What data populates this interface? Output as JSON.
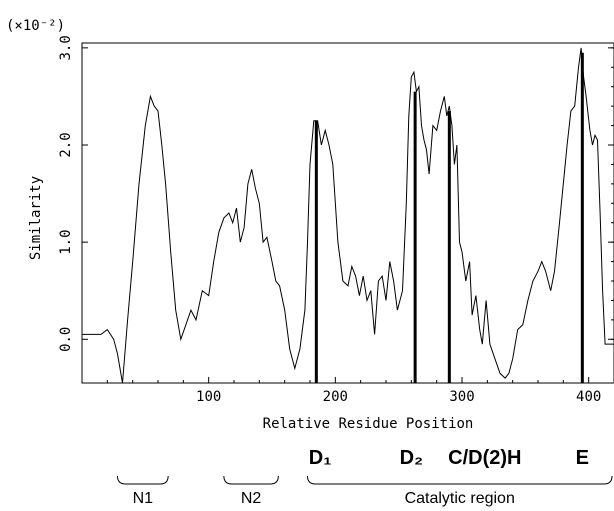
{
  "chart_data": {
    "type": "line",
    "scale_label": "(×10⁻²)",
    "xlabel": "Relative Residue Position",
    "ylabel": "Similarity",
    "xlim": [
      0,
      420
    ],
    "ylim": [
      -0.45,
      3.05
    ],
    "xticks": [
      100,
      200,
      300,
      400
    ],
    "xtick_labels": [
      "100",
      "200",
      "300",
      "400"
    ],
    "yticks": [
      0.0,
      1.0,
      2.0,
      3.0
    ],
    "ytick_labels": [
      "0.0",
      "1.0",
      "2.0",
      "3.0"
    ],
    "grid": false,
    "series": [
      {
        "points": [
          [
            0,
            0.05
          ],
          [
            15,
            0.05
          ],
          [
            20,
            0.1
          ],
          [
            25,
            0.0
          ],
          [
            28,
            -0.15
          ],
          [
            32,
            -0.45
          ],
          [
            36,
            0.2
          ],
          [
            40,
            0.8
          ],
          [
            45,
            1.6
          ],
          [
            50,
            2.2
          ],
          [
            54,
            2.5
          ],
          [
            57,
            2.4
          ],
          [
            60,
            2.35
          ],
          [
            63,
            2.0
          ],
          [
            66,
            1.6
          ],
          [
            70,
            0.9
          ],
          [
            74,
            0.3
          ],
          [
            78,
            0.0
          ],
          [
            82,
            0.15
          ],
          [
            86,
            0.3
          ],
          [
            90,
            0.2
          ],
          [
            95,
            0.5
          ],
          [
            100,
            0.45
          ],
          [
            104,
            0.8
          ],
          [
            108,
            1.1
          ],
          [
            112,
            1.25
          ],
          [
            116,
            1.3
          ],
          [
            119,
            1.2
          ],
          [
            122,
            1.35
          ],
          [
            125,
            1.0
          ],
          [
            128,
            1.15
          ],
          [
            131,
            1.6
          ],
          [
            134,
            1.75
          ],
          [
            137,
            1.55
          ],
          [
            140,
            1.4
          ],
          [
            143,
            1.0
          ],
          [
            146,
            1.05
          ],
          [
            150,
            0.8
          ],
          [
            153,
            0.6
          ],
          [
            156,
            0.55
          ],
          [
            160,
            0.3
          ],
          [
            164,
            -0.1
          ],
          [
            168,
            -0.3
          ],
          [
            172,
            -0.1
          ],
          [
            176,
            0.3
          ],
          [
            178,
            1.0
          ],
          [
            180,
            1.8
          ],
          [
            183,
            2.25
          ],
          [
            186,
            2.25
          ],
          [
            189,
            2.0
          ],
          [
            192,
            2.15
          ],
          [
            195,
            2.0
          ],
          [
            198,
            1.8
          ],
          [
            202,
            1.0
          ],
          [
            206,
            0.6
          ],
          [
            210,
            0.55
          ],
          [
            213,
            0.75
          ],
          [
            216,
            0.65
          ],
          [
            219,
            0.45
          ],
          [
            222,
            0.65
          ],
          [
            225,
            0.4
          ],
          [
            228,
            0.5
          ],
          [
            231,
            0.05
          ],
          [
            234,
            0.6
          ],
          [
            237,
            0.65
          ],
          [
            240,
            0.4
          ],
          [
            243,
            0.8
          ],
          [
            246,
            0.6
          ],
          [
            249,
            0.3
          ],
          [
            253,
            0.5
          ],
          [
            256,
            1.4
          ],
          [
            258,
            2.3
          ],
          [
            260,
            2.7
          ],
          [
            262,
            2.75
          ],
          [
            264,
            2.55
          ],
          [
            266,
            2.6
          ],
          [
            268,
            2.2
          ],
          [
            270,
            2.05
          ],
          [
            272,
            1.95
          ],
          [
            274,
            1.7
          ],
          [
            277,
            2.2
          ],
          [
            280,
            2.15
          ],
          [
            283,
            2.35
          ],
          [
            286,
            2.5
          ],
          [
            288,
            2.3
          ],
          [
            290,
            2.4
          ],
          [
            292,
            2.2
          ],
          [
            294,
            1.8
          ],
          [
            296,
            2.0
          ],
          [
            298,
            1.0
          ],
          [
            300,
            0.9
          ],
          [
            303,
            0.6
          ],
          [
            306,
            0.8
          ],
          [
            308,
            0.25
          ],
          [
            311,
            0.45
          ],
          [
            314,
            0.1
          ],
          [
            316,
            -0.05
          ],
          [
            319,
            0.4
          ],
          [
            322,
            -0.05
          ],
          [
            326,
            -0.2
          ],
          [
            330,
            -0.35
          ],
          [
            334,
            -0.4
          ],
          [
            337,
            -0.35
          ],
          [
            340,
            -0.2
          ],
          [
            344,
            0.1
          ],
          [
            348,
            0.15
          ],
          [
            352,
            0.4
          ],
          [
            356,
            0.6
          ],
          [
            360,
            0.7
          ],
          [
            363,
            0.8
          ],
          [
            366,
            0.7
          ],
          [
            370,
            0.5
          ],
          [
            373,
            0.7
          ],
          [
            377,
            1.2
          ],
          [
            380,
            1.6
          ],
          [
            383,
            2.0
          ],
          [
            386,
            2.35
          ],
          [
            389,
            2.4
          ],
          [
            392,
            2.8
          ],
          [
            394,
            3.0
          ],
          [
            396,
            2.7
          ],
          [
            398,
            2.5
          ],
          [
            401,
            2.15
          ],
          [
            403,
            2.0
          ],
          [
            405,
            2.1
          ],
          [
            407,
            2.05
          ],
          [
            409,
            1.3
          ],
          [
            411,
            0.5
          ],
          [
            413,
            -0.05
          ],
          [
            420,
            -0.05
          ]
        ]
      }
    ],
    "markers": [
      {
        "x": 185,
        "y": 2.25,
        "label": "D₁",
        "label_x": 188
      },
      {
        "x": 263,
        "y": 2.55,
        "label": "D₂",
        "label_x": 260
      },
      {
        "x": 290,
        "y": 2.35,
        "label": "C/D(2)H",
        "label_x": 318
      },
      {
        "x": 395,
        "y": 2.95,
        "label": "E",
        "label_x": 395
      }
    ],
    "regions": [
      {
        "label": "N1",
        "start": 28,
        "end": 68
      },
      {
        "label": "N2",
        "start": 112,
        "end": 155
      },
      {
        "label": "Catalytic region",
        "start": 178,
        "end": 420
      }
    ]
  }
}
